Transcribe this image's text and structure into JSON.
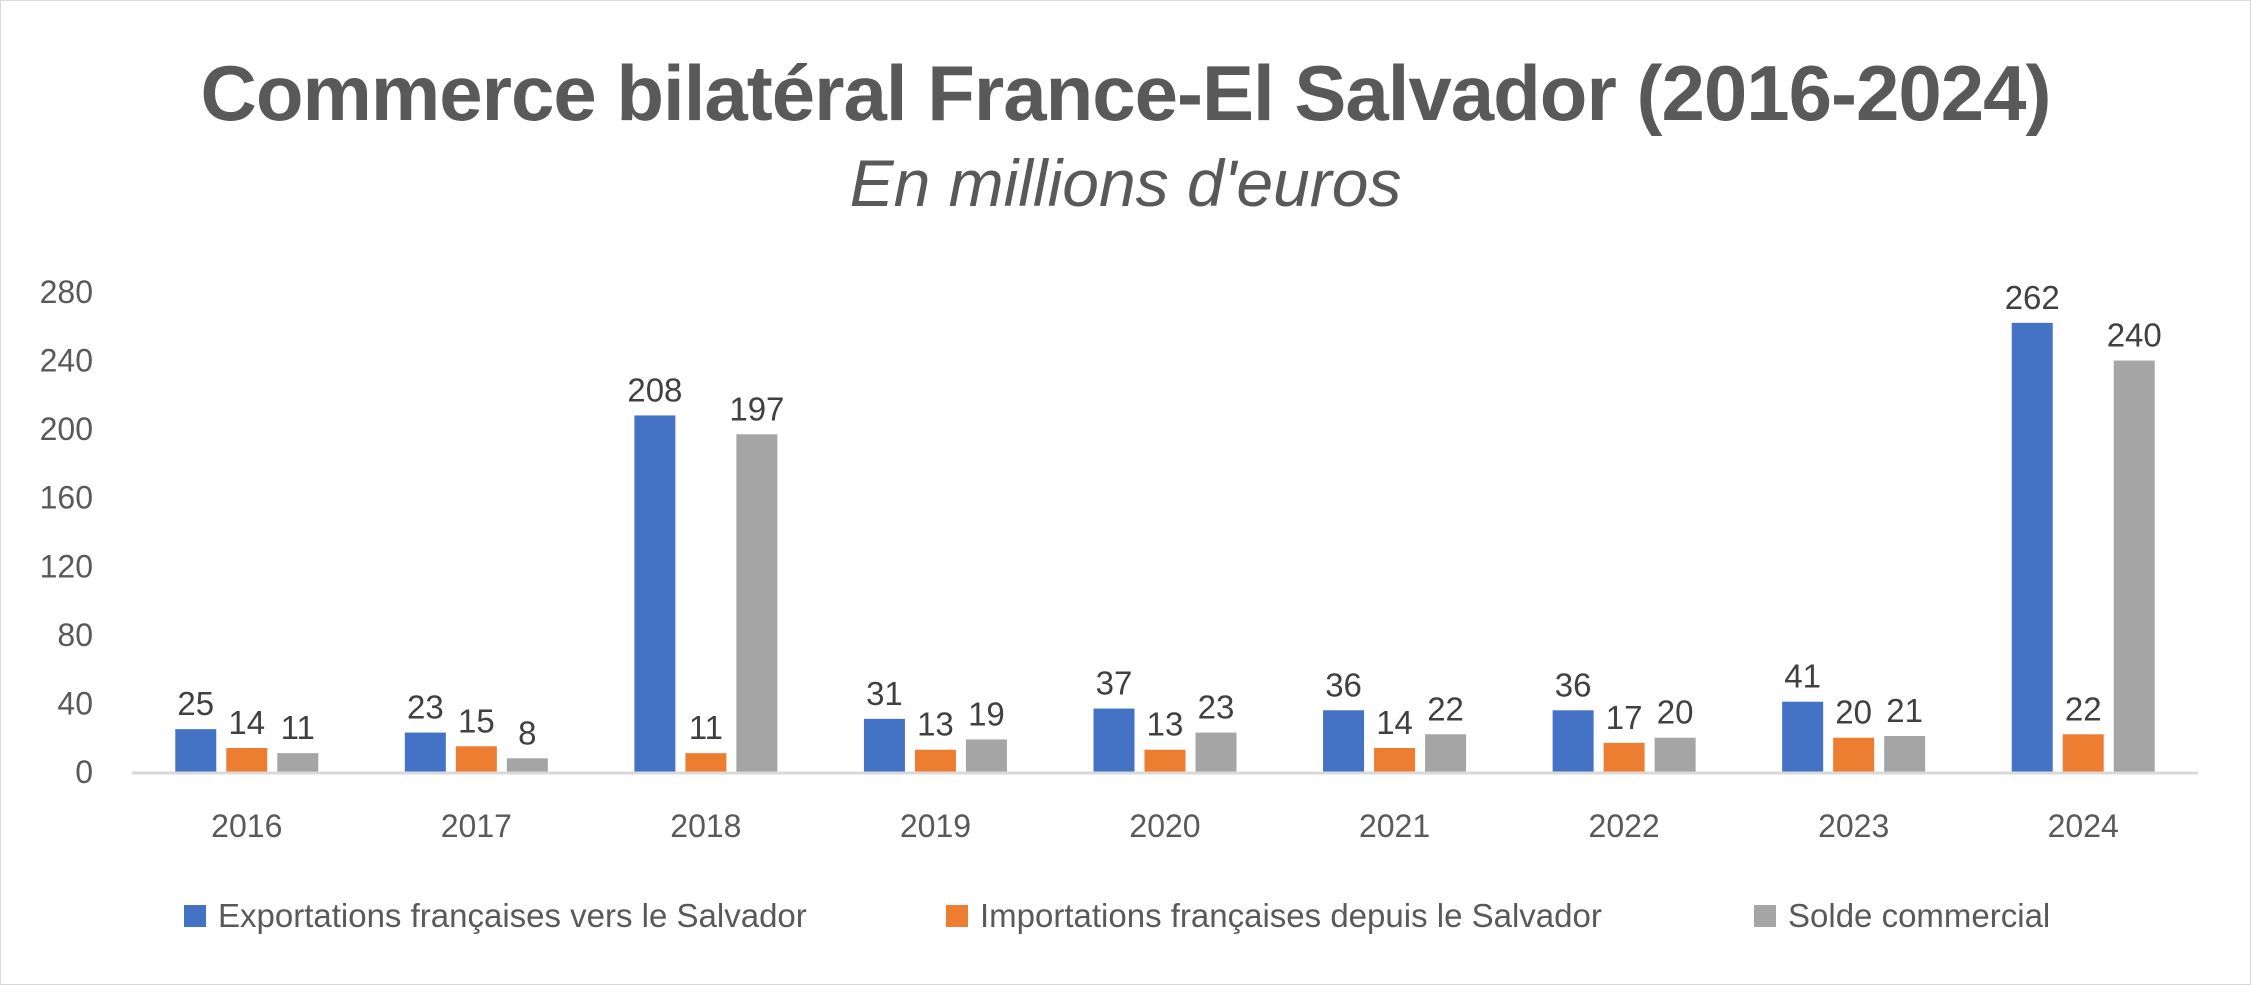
{
  "chart_data": {
    "type": "bar",
    "title": "Commerce bilatéral France-El Salvador (2016-2024)",
    "subtitle": "En millions d'euros",
    "xlabel": "",
    "ylabel": "",
    "categories": [
      "2016",
      "2017",
      "2018",
      "2019",
      "2020",
      "2021",
      "2022",
      "2023",
      "2024"
    ],
    "series": [
      {
        "name": "Exportations françaises vers le Salvador",
        "color": "#4472c4",
        "values": [
          25,
          23,
          208,
          31,
          37,
          36,
          36,
          41,
          262
        ]
      },
      {
        "name": "Importations françaises depuis le Salvador",
        "color": "#ed7d31",
        "values": [
          14,
          15,
          11,
          13,
          13,
          14,
          17,
          20,
          22
        ]
      },
      {
        "name": "Solde commercial",
        "color": "#a5a5a5",
        "values": [
          11,
          8,
          197,
          19,
          23,
          22,
          20,
          21,
          240
        ]
      }
    ],
    "ylim": [
      0,
      280
    ],
    "yticks": [
      "0",
      "40",
      "80",
      "120",
      "160",
      "200",
      "240",
      "280"
    ],
    "grid": false,
    "data_labels": true,
    "legend_position": "bottom"
  }
}
